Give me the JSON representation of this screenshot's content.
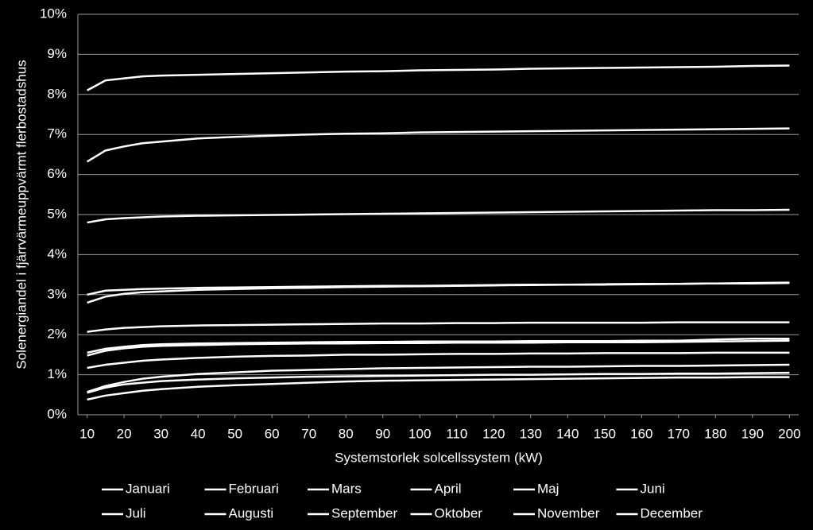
{
  "chart_data": {
    "type": "line",
    "y_label": "Solenergiandel i fjärrvärmeuppvärmt flerbostadshus",
    "x_label": "Systemstorlek solcellssystem (kW)",
    "x": [
      10,
      15,
      20,
      25,
      30,
      40,
      50,
      60,
      70,
      80,
      90,
      100,
      110,
      120,
      130,
      140,
      150,
      160,
      170,
      180,
      190,
      200
    ],
    "xlim": [
      7.5,
      202.5
    ],
    "xticks": [
      10,
      20,
      30,
      40,
      50,
      60,
      70,
      80,
      90,
      100,
      110,
      120,
      130,
      140,
      150,
      160,
      170,
      180,
      190,
      200
    ],
    "ylim": [
      0,
      10
    ],
    "yticks": [
      {
        "value": 0,
        "label": "0%"
      },
      {
        "value": 1,
        "label": "1%"
      },
      {
        "value": 2,
        "label": "2%"
      },
      {
        "value": 3,
        "label": "3%"
      },
      {
        "value": 4,
        "label": "4%"
      },
      {
        "value": 5,
        "label": "5%"
      },
      {
        "value": 6,
        "label": "6%"
      },
      {
        "value": 7,
        "label": "7%"
      },
      {
        "value": 8,
        "label": "8%"
      },
      {
        "value": 9,
        "label": "9%"
      },
      {
        "value": 10,
        "label": "10%"
      }
    ],
    "grid": true,
    "series": [
      {
        "name": "Januari",
        "color": "#ffffff",
        "values": [
          0.38,
          0.48,
          0.54,
          0.6,
          0.64,
          0.7,
          0.74,
          0.77,
          0.8,
          0.83,
          0.85,
          0.86,
          0.87,
          0.88,
          0.89,
          0.9,
          0.91,
          0.92,
          0.93,
          0.93,
          0.94,
          0.94
        ]
      },
      {
        "name": "Februari",
        "color": "#ffffff",
        "values": [
          0.55,
          0.68,
          0.76,
          0.8,
          0.84,
          0.88,
          0.91,
          0.93,
          0.95,
          0.96,
          0.97,
          0.98,
          0.99,
          1.0,
          1.0,
          1.01,
          1.02,
          1.02,
          1.03,
          1.03,
          1.04,
          1.05
        ]
      },
      {
        "name": "Mars",
        "color": "#ffffff",
        "values": [
          1.48,
          1.6,
          1.66,
          1.7,
          1.72,
          1.74,
          1.76,
          1.77,
          1.78,
          1.78,
          1.79,
          1.79,
          1.8,
          1.8,
          1.8,
          1.81,
          1.81,
          1.81,
          1.82,
          1.83,
          1.84,
          1.85
        ]
      },
      {
        "name": "April",
        "color": "#ffffff",
        "values": [
          2.8,
          2.95,
          3.02,
          3.06,
          3.08,
          3.12,
          3.14,
          3.16,
          3.17,
          3.19,
          3.2,
          3.21,
          3.22,
          3.23,
          3.24,
          3.25,
          3.25,
          3.26,
          3.27,
          3.28,
          3.28,
          3.29
        ]
      },
      {
        "name": "Maj",
        "color": "#ffffff",
        "values": [
          4.8,
          4.88,
          4.91,
          4.93,
          4.95,
          4.97,
          4.98,
          4.99,
          5.0,
          5.01,
          5.02,
          5.03,
          5.04,
          5.05,
          5.06,
          5.07,
          5.08,
          5.09,
          5.1,
          5.11,
          5.11,
          5.12
        ]
      },
      {
        "name": "Juni",
        "color": "#ffffff",
        "values": [
          8.1,
          8.35,
          8.4,
          8.45,
          8.47,
          8.49,
          8.51,
          8.53,
          8.55,
          8.57,
          8.58,
          8.6,
          8.61,
          8.62,
          8.64,
          8.65,
          8.66,
          8.67,
          8.68,
          8.69,
          8.71,
          8.72
        ]
      },
      {
        "name": "Juli",
        "color": "#ffffff",
        "values": [
          6.32,
          6.6,
          6.7,
          6.78,
          6.82,
          6.9,
          6.94,
          6.97,
          7.0,
          7.02,
          7.03,
          7.05,
          7.06,
          7.07,
          7.08,
          7.09,
          7.1,
          7.11,
          7.12,
          7.13,
          7.14,
          7.15
        ]
      },
      {
        "name": "Augusti",
        "color": "#ffffff",
        "values": [
          3.0,
          3.1,
          3.12,
          3.14,
          3.15,
          3.17,
          3.18,
          3.19,
          3.2,
          3.21,
          3.22,
          3.22,
          3.23,
          3.24,
          3.25,
          3.25,
          3.26,
          3.27,
          3.27,
          3.28,
          3.29,
          3.3
        ]
      },
      {
        "name": "September",
        "color": "#ffffff",
        "values": [
          2.07,
          2.13,
          2.17,
          2.19,
          2.21,
          2.23,
          2.24,
          2.25,
          2.26,
          2.27,
          2.28,
          2.28,
          2.29,
          2.29,
          2.3,
          2.3,
          2.3,
          2.3,
          2.31,
          2.31,
          2.31,
          2.31
        ]
      },
      {
        "name": "Oktober",
        "color": "#ffffff",
        "values": [
          1.55,
          1.65,
          1.7,
          1.74,
          1.76,
          1.78,
          1.79,
          1.8,
          1.81,
          1.82,
          1.82,
          1.83,
          1.83,
          1.83,
          1.84,
          1.84,
          1.84,
          1.85,
          1.85,
          1.88,
          1.9,
          1.9
        ]
      },
      {
        "name": "November",
        "color": "#ffffff",
        "values": [
          1.17,
          1.25,
          1.3,
          1.35,
          1.38,
          1.42,
          1.45,
          1.47,
          1.48,
          1.5,
          1.5,
          1.51,
          1.52,
          1.52,
          1.53,
          1.53,
          1.54,
          1.54,
          1.54,
          1.55,
          1.55,
          1.55
        ]
      },
      {
        "name": "December",
        "color": "#ffffff",
        "values": [
          0.57,
          0.72,
          0.82,
          0.9,
          0.95,
          1.02,
          1.06,
          1.1,
          1.12,
          1.14,
          1.16,
          1.17,
          1.18,
          1.19,
          1.2,
          1.2,
          1.21,
          1.22,
          1.22,
          1.23,
          1.24,
          1.25
        ]
      }
    ]
  }
}
